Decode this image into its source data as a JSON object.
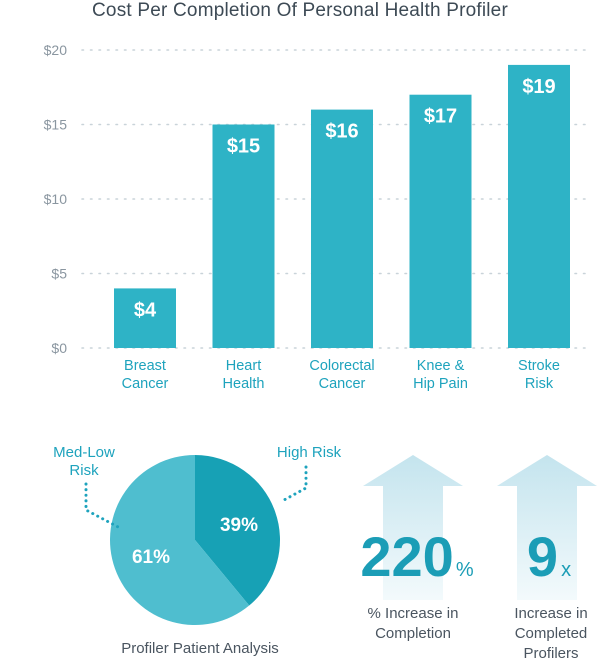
{
  "chart_data": [
    {
      "type": "bar",
      "title": "Cost Per Completion Of Personal Health Profiler",
      "categories": [
        [
          "Breast",
          "Cancer"
        ],
        [
          "Heart",
          "Health"
        ],
        [
          "Colorectal",
          "Cancer"
        ],
        [
          "Knee &",
          "Hip Pain"
        ],
        [
          "Stroke",
          "Risk"
        ]
      ],
      "values": [
        4,
        15,
        16,
        17,
        19
      ],
      "value_labels": [
        "$4",
        "$15",
        "$16",
        "$17",
        "$19"
      ],
      "yticks": [
        "$0",
        "$5",
        "$10",
        "$15",
        "$20"
      ],
      "ylim": [
        0,
        20
      ],
      "grid": true,
      "color": "#2eb3c6"
    },
    {
      "type": "pie",
      "title": "Profiler Patient Analysis",
      "slices": [
        {
          "name": [
            "High Risk"
          ],
          "value": 39,
          "label": "39%",
          "color": "#17a1b5"
        },
        {
          "name": [
            "Med-Low",
            "Risk"
          ],
          "value": 61,
          "label": "61%",
          "color": "#4fbecf"
        }
      ]
    }
  ],
  "stats": [
    {
      "value": "220",
      "suffix": "%",
      "label": [
        "% Increase in",
        "Completion"
      ]
    },
    {
      "value": "9",
      "suffix": "x",
      "label": [
        "Increase in",
        "Completed",
        "Profilers"
      ]
    }
  ],
  "colors": {
    "accent": "#1b9db6",
    "bar": "#2eb3c6",
    "arrow_top": "#c4e4ee",
    "arrow_bottom": "#eef8fb"
  }
}
